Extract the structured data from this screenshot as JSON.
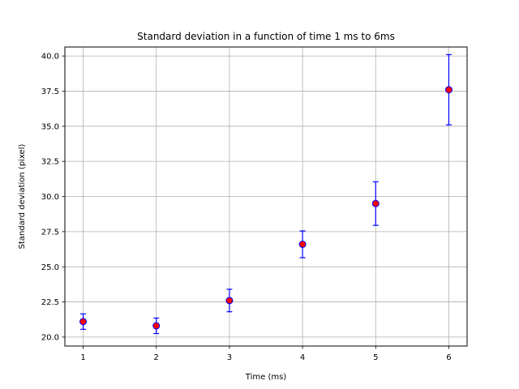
{
  "chart_data": {
    "type": "scatter",
    "title": "Standard deviation in a function of time 1 ms to 6ms",
    "xlabel": "Time (ms)",
    "ylabel": "Standard deviation (pixel)",
    "xlim": [
      0.75,
      6.25
    ],
    "ylim": [
      19.36,
      40.64
    ],
    "x_ticks": [
      1,
      2,
      3,
      4,
      5,
      6
    ],
    "x_tick_labels": [
      "1",
      "2",
      "3",
      "4",
      "5",
      "6"
    ],
    "y_ticks": [
      20.0,
      22.5,
      25.0,
      27.5,
      30.0,
      32.5,
      35.0,
      37.5,
      40.0
    ],
    "y_tick_labels": [
      "20.0",
      "22.5",
      "25.0",
      "27.5",
      "30.0",
      "32.5",
      "35.0",
      "37.5",
      "40.0"
    ],
    "grid": true,
    "series": [
      {
        "x": [
          1,
          2,
          3,
          4,
          5,
          6
        ],
        "y": [
          21.1,
          20.8,
          22.6,
          26.6,
          29.5,
          37.6
        ],
        "yerr": [
          0.55,
          0.55,
          0.8,
          0.95,
          1.55,
          2.5
        ],
        "marker_color": "#ff0000",
        "edge_color": "#0000ff",
        "errorbar_color": "#0000ff"
      }
    ]
  }
}
